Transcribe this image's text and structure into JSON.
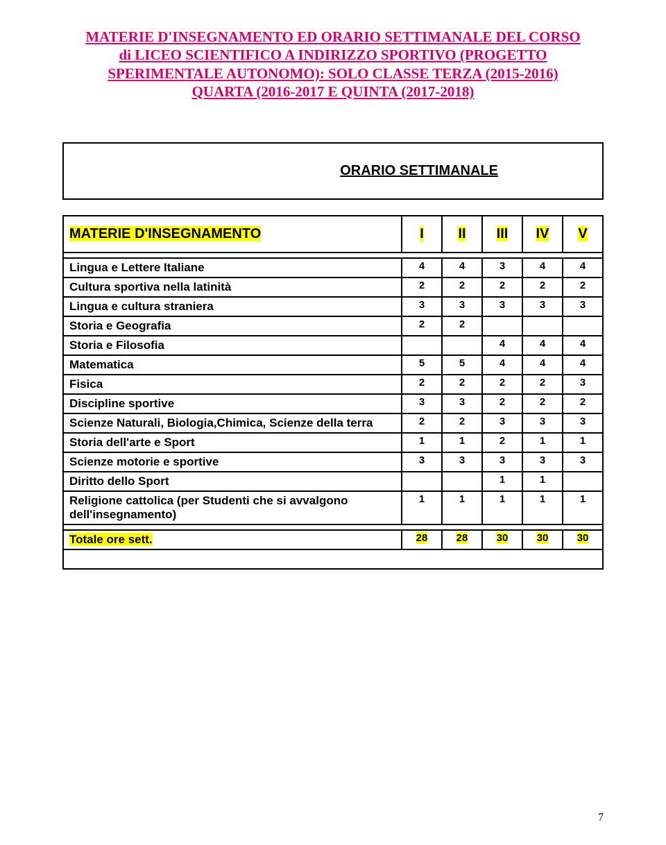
{
  "title": {
    "color": "#d6006c",
    "lines": [
      "MATERIE D'INSEGNAMENTO ED ORARIO SETTIMANALE DEL CORSO",
      "di LICEO SCIENTIFICO A INDIRIZZO SPORTIVO (PROGETTO",
      "SPERIMENTALE AUTONOMO): SOLO CLASSE TERZA (2015-2016)",
      "QUARTA (2016-2017 E QUINTA (2017-2018)"
    ]
  },
  "orario_label": "ORARIO SETTIMANALE",
  "header": {
    "subject_label": "MATERIE D'INSEGNAMENTO",
    "years": [
      "I",
      "II",
      "III",
      "IV",
      "V"
    ]
  },
  "rows": [
    {
      "label": "Lingua e Lettere Italiane",
      "vals": [
        "4",
        "4",
        "3",
        "4",
        "4"
      ]
    },
    {
      "label": "Cultura sportiva nella latinità",
      "vals": [
        "2",
        "2",
        "2",
        "2",
        "2"
      ]
    },
    {
      "label": "Lingua e cultura straniera",
      "vals": [
        "3",
        "3",
        "3",
        "3",
        "3"
      ]
    },
    {
      "label": "Storia e Geografia",
      "vals": [
        "2",
        "2",
        "",
        "",
        ""
      ]
    },
    {
      "label": "Storia e Filosofia",
      "vals": [
        "",
        "",
        "4",
        "4",
        "4"
      ]
    },
    {
      "label": "Matematica",
      "vals": [
        "5",
        "5",
        "4",
        "4",
        "4"
      ]
    },
    {
      "label": "Fisica",
      "vals": [
        "2",
        "2",
        "2",
        "2",
        "3"
      ]
    },
    {
      "label": "Discipline sportive",
      "vals": [
        "3",
        "3",
        "2",
        "2",
        "2"
      ]
    },
    {
      "label": "Scienze Naturali,  Biologia,Chimica, Scienze della terra",
      "vals": [
        "2",
        "2",
        "3",
        "3",
        "3"
      ]
    },
    {
      "label": "Storia dell'arte e Sport",
      "vals": [
        "1",
        "1",
        "2",
        "1",
        "1"
      ]
    },
    {
      "label": "Scienze motorie e sportive",
      "vals": [
        "3",
        "3",
        "3",
        "3",
        "3"
      ]
    },
    {
      "label": "Diritto dello Sport",
      "vals": [
        "",
        "",
        "1",
        "1",
        ""
      ]
    },
    {
      "label": "Religione cattolica (per Studenti che si avvalgono dell'insegnamento)",
      "vals": [
        "1",
        "1",
        "1",
        "1",
        "1"
      ]
    }
  ],
  "total": {
    "label": "Totale ore sett.",
    "vals": [
      "28",
      "28",
      "30",
      "30",
      "30"
    ]
  },
  "highlight_bg": "#ffff00",
  "page_number": "7"
}
